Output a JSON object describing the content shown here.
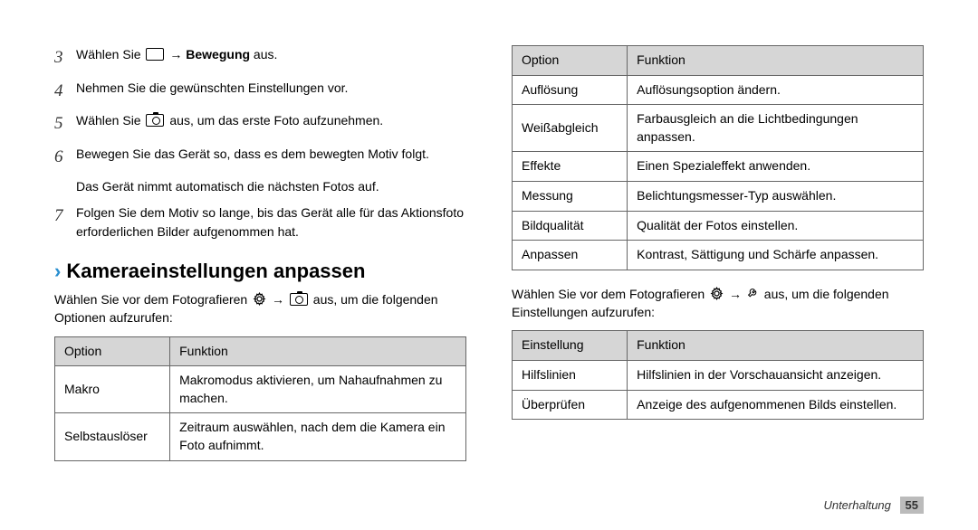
{
  "left": {
    "steps": [
      {
        "n": "3",
        "pre": "Wählen Sie ",
        "icon": "box",
        "mid": " → ",
        "bold": "Bewegung",
        "post": " aus."
      },
      {
        "n": "4",
        "text": "Nehmen Sie die gewünschten Einstellungen vor."
      },
      {
        "n": "5",
        "pre": "Wählen Sie ",
        "icon": "camera",
        "post": " aus, um das erste Foto aufzunehmen."
      },
      {
        "n": "6",
        "text": "Bewegen Sie das Gerät so, dass es dem bewegten Motiv folgt.",
        "sub": "Das Gerät nimmt automatisch die nächsten Fotos auf."
      },
      {
        "n": "7",
        "text": "Folgen Sie dem Motiv so lange, bis das Gerät alle für das Aktionsfoto erforderlichen Bilder aufgenommen hat."
      }
    ],
    "heading": "Kameraeinstellungen anpassen",
    "intro_pre": "Wählen Sie vor dem Fotografieren ",
    "intro_mid": " → ",
    "intro_post": " aus, um die folgenden Optionen aufzurufen:",
    "table1": {
      "head": [
        "Option",
        "Funktion"
      ],
      "rows": [
        [
          "Makro",
          "Makromodus aktivieren, um Nahaufnahmen zu machen."
        ],
        [
          "Selbstauslöser",
          "Zeitraum auswählen, nach dem die Kamera ein Foto aufnimmt."
        ]
      ]
    }
  },
  "right": {
    "table2": {
      "head": [
        "Option",
        "Funktion"
      ],
      "rows": [
        [
          "Auflösung",
          "Auflösungsoption ändern."
        ],
        [
          "Weißabgleich",
          "Farbausgleich an die Lichtbedingungen anpassen."
        ],
        [
          "Effekte",
          "Einen Spezialeffekt anwenden."
        ],
        [
          "Messung",
          "Belichtungsmesser-Typ auswählen."
        ],
        [
          "Bildqualität",
          "Qualität der Fotos einstellen."
        ],
        [
          "Anpassen",
          "Kontrast, Sättigung und Schärfe anpassen."
        ]
      ]
    },
    "intro2_pre": "Wählen Sie vor dem Fotografieren ",
    "intro2_mid": " → ",
    "intro2_post": " aus, um die folgenden Einstellungen aufzurufen:",
    "table3": {
      "head": [
        "Einstellung",
        "Funktion"
      ],
      "rows": [
        [
          "Hilfslinien",
          "Hilfslinien in der Vorschauansicht anzeigen."
        ],
        [
          "Überprüfen",
          "Anzeige des aufgenommenen Bilds einstellen."
        ]
      ]
    }
  },
  "footer": {
    "section": "Unterhaltung",
    "page": "55"
  }
}
